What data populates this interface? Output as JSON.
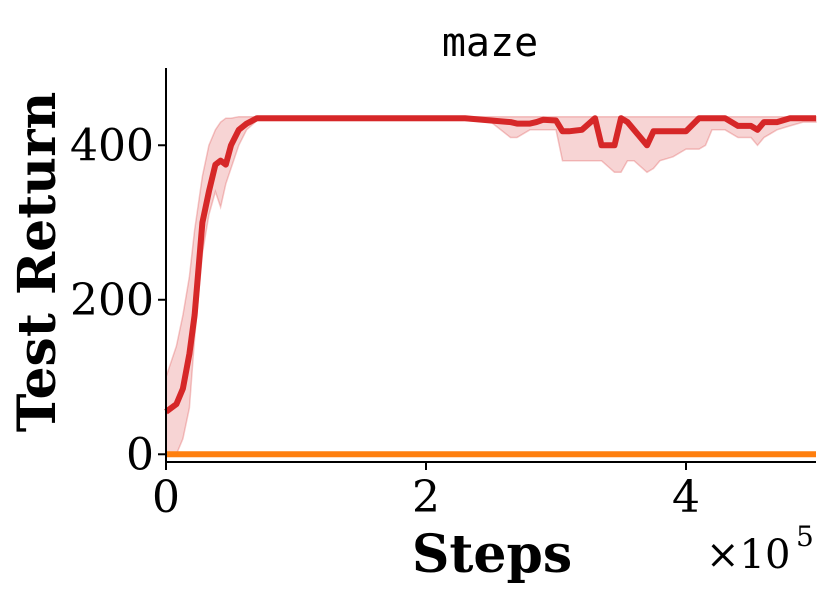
{
  "chart_data": {
    "type": "line",
    "title": "maze",
    "xlabel": "Steps",
    "ylabel": "Test Return",
    "x_multiplier_base": "×10",
    "x_multiplier_exp": "5",
    "xlim": [
      0,
      5
    ],
    "ylim": [
      -10,
      500
    ],
    "grid": false,
    "legend": "none",
    "xticks": [
      0,
      2,
      4
    ],
    "xtick_labels": [
      "0",
      "2",
      "4"
    ],
    "yticks": [
      0,
      200,
      400
    ],
    "ytick_labels": [
      "0",
      "200",
      "400"
    ],
    "series": [
      {
        "color": "#d62728",
        "x": [
          0.0,
          0.08,
          0.13,
          0.18,
          0.22,
          0.28,
          0.33,
          0.38,
          0.42,
          0.46,
          0.5,
          0.56,
          0.62,
          0.7,
          1.0,
          1.5,
          2.0,
          2.3,
          2.5,
          2.65,
          2.7,
          2.8,
          2.85,
          2.9,
          3.0,
          3.05,
          3.1,
          3.2,
          3.3,
          3.35,
          3.45,
          3.5,
          3.55,
          3.6,
          3.7,
          3.75,
          3.8,
          3.9,
          4.0,
          4.1,
          4.15,
          4.2,
          4.3,
          4.4,
          4.5,
          4.55,
          4.6,
          4.65,
          4.7,
          4.8,
          4.9,
          5.0
        ],
        "y": [
          55,
          65,
          85,
          130,
          180,
          300,
          340,
          375,
          380,
          375,
          400,
          420,
          428,
          435,
          435,
          435,
          435,
          435,
          432,
          430,
          428,
          428,
          430,
          433,
          432,
          418,
          418,
          420,
          435,
          400,
          400,
          435,
          430,
          420,
          400,
          418,
          418,
          418,
          418,
          435,
          435,
          435,
          435,
          425,
          425,
          420,
          430,
          430,
          430,
          435,
          435,
          435
        ],
        "y_lower": [
          0,
          0,
          20,
          60,
          150,
          260,
          310,
          340,
          320,
          350,
          370,
          400,
          420,
          432,
          432,
          432,
          432,
          432,
          430,
          410,
          410,
          420,
          420,
          420,
          420,
          380,
          380,
          380,
          380,
          380,
          365,
          365,
          380,
          380,
          365,
          370,
          380,
          385,
          395,
          395,
          400,
          420,
          420,
          410,
          410,
          400,
          410,
          415,
          420,
          425,
          430,
          430
        ],
        "y_upper": [
          100,
          140,
          180,
          230,
          290,
          360,
          400,
          420,
          430,
          435,
          435,
          437,
          437,
          437,
          437,
          437,
          437,
          437,
          437,
          437,
          437,
          437,
          437,
          437,
          437,
          437,
          437,
          437,
          437,
          437,
          437,
          437,
          437,
          437,
          437,
          437,
          437,
          437,
          437,
          437,
          437,
          437,
          437,
          437,
          437,
          437,
          437,
          437,
          437,
          437,
          437,
          437
        ]
      },
      {
        "color": "#ff7f0e",
        "x": [
          0,
          5
        ],
        "y": [
          0,
          0
        ]
      }
    ]
  }
}
